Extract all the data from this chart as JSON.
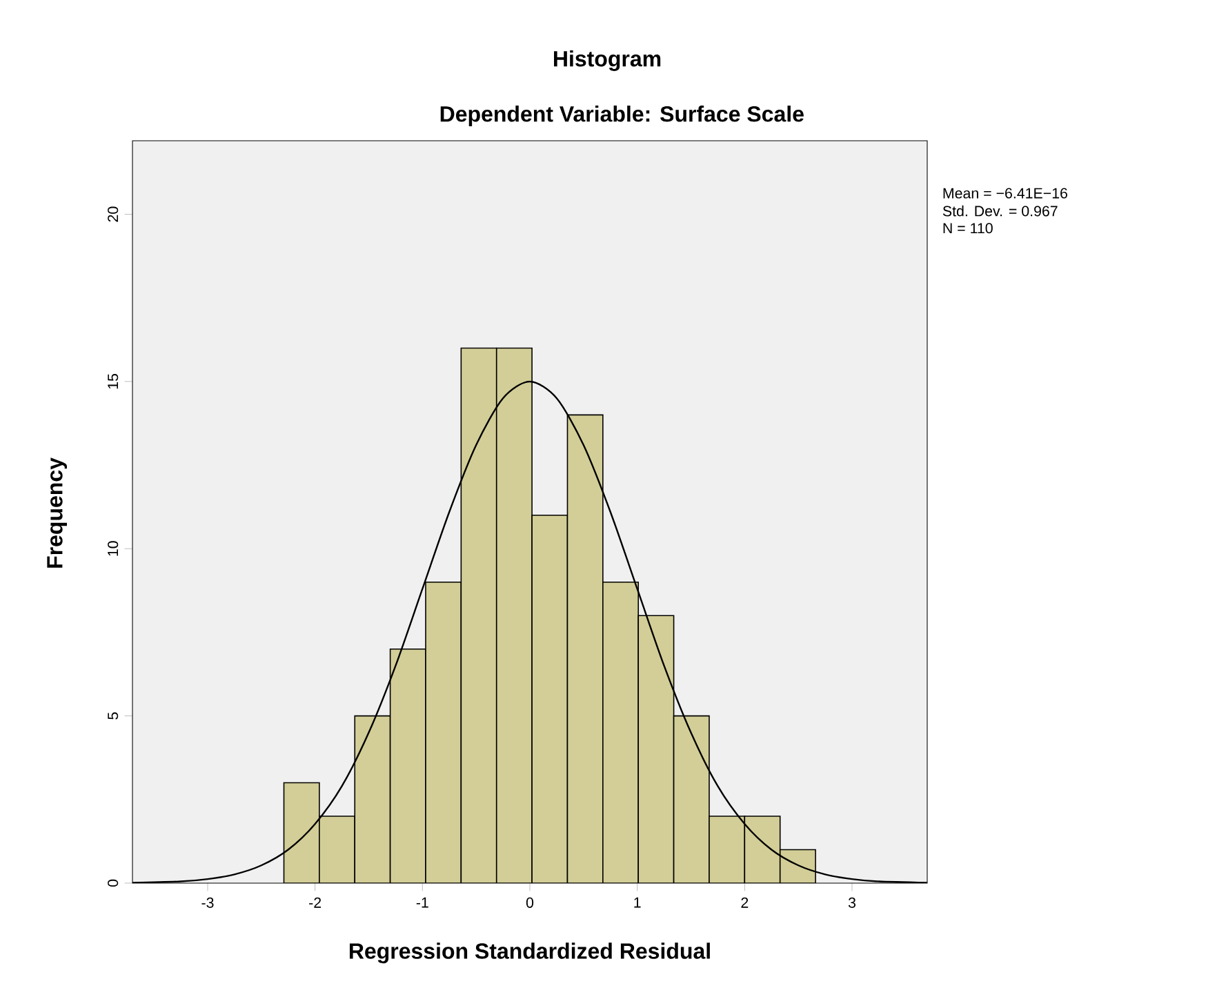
{
  "chart_data": {
    "type": "histogram",
    "title": "Histogram",
    "subtitle": "Dependent Variable: Surface Scale",
    "xlabel": "Regression Standardized Residual",
    "ylabel": "Frequency",
    "bins": [
      -2.29,
      -1.96,
      -1.63,
      -1.3,
      -0.97,
      -0.64,
      -0.31,
      0.02,
      0.35,
      0.68,
      1.01,
      1.34,
      1.67,
      2.0,
      2.33,
      2.66
    ],
    "values": [
      3,
      2,
      5,
      7,
      9,
      16,
      16,
      11,
      14,
      9,
      8,
      5,
      2,
      2,
      1
    ],
    "color": "#d3ce97",
    "series": [
      {
        "type": "line",
        "color": "#000000",
        "x": [
          -3.7,
          -3.25,
          -3,
          -2.75,
          -2.5,
          -2.25,
          -2,
          -1.75,
          -1.5,
          -1.25,
          -1,
          -0.75,
          -0.5,
          -0.25,
          0,
          0.25,
          0.5,
          0.75,
          1,
          1.25,
          1.5,
          1.75,
          2,
          2.25,
          2.5,
          2.75,
          3,
          3.25,
          3.7
        ],
        "values": [
          0.01,
          0.05,
          0.12,
          0.26,
          0.53,
          1.0,
          1.77,
          2.9,
          4.5,
          6.5,
          8.8,
          11.1,
          13.1,
          14.5,
          15,
          14.5,
          13.1,
          11.1,
          8.8,
          6.5,
          4.5,
          2.9,
          1.77,
          1.0,
          0.53,
          0.26,
          0.12,
          0.05,
          0.01
        ]
      }
    ],
    "xlim": [
      -3.7,
      3.7
    ],
    "ylim": [
      0,
      22.2
    ],
    "xticks": [
      -3,
      -2,
      -1,
      0,
      1,
      2,
      3
    ],
    "yticks": [
      0,
      5,
      10,
      15,
      20
    ],
    "annotations": [
      "Mean = −6.41E−16",
      "Std. Dev. = 0.967",
      "N = 110"
    ]
  }
}
